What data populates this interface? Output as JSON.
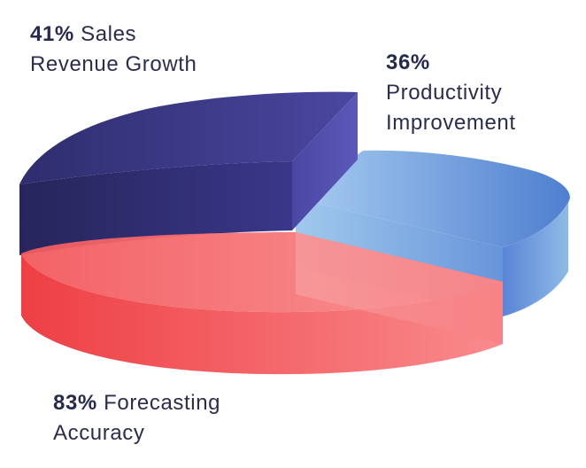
{
  "chart_data": {
    "type": "pie",
    "style": "3d-exploded",
    "slices": [
      {
        "label_pct": "41%",
        "label_line1": "Sales",
        "label_line2": "Revenue Growth",
        "value": 41,
        "color_top": "#3f3c8a",
        "color_side": "#2c2a63"
      },
      {
        "label_pct": "36%",
        "label_line1": "Productivity",
        "label_line2": "Improvement",
        "value": 36,
        "color_top": "#6aa6e2",
        "color_side": "#4f7fcf"
      },
      {
        "label_pct": "83%",
        "label_line1": "Forecasting",
        "label_line2": "Accuracy",
        "value": 83,
        "color_top": "#f56a6d",
        "color_side": "#ef4a4f"
      }
    ],
    "legend": "none"
  }
}
